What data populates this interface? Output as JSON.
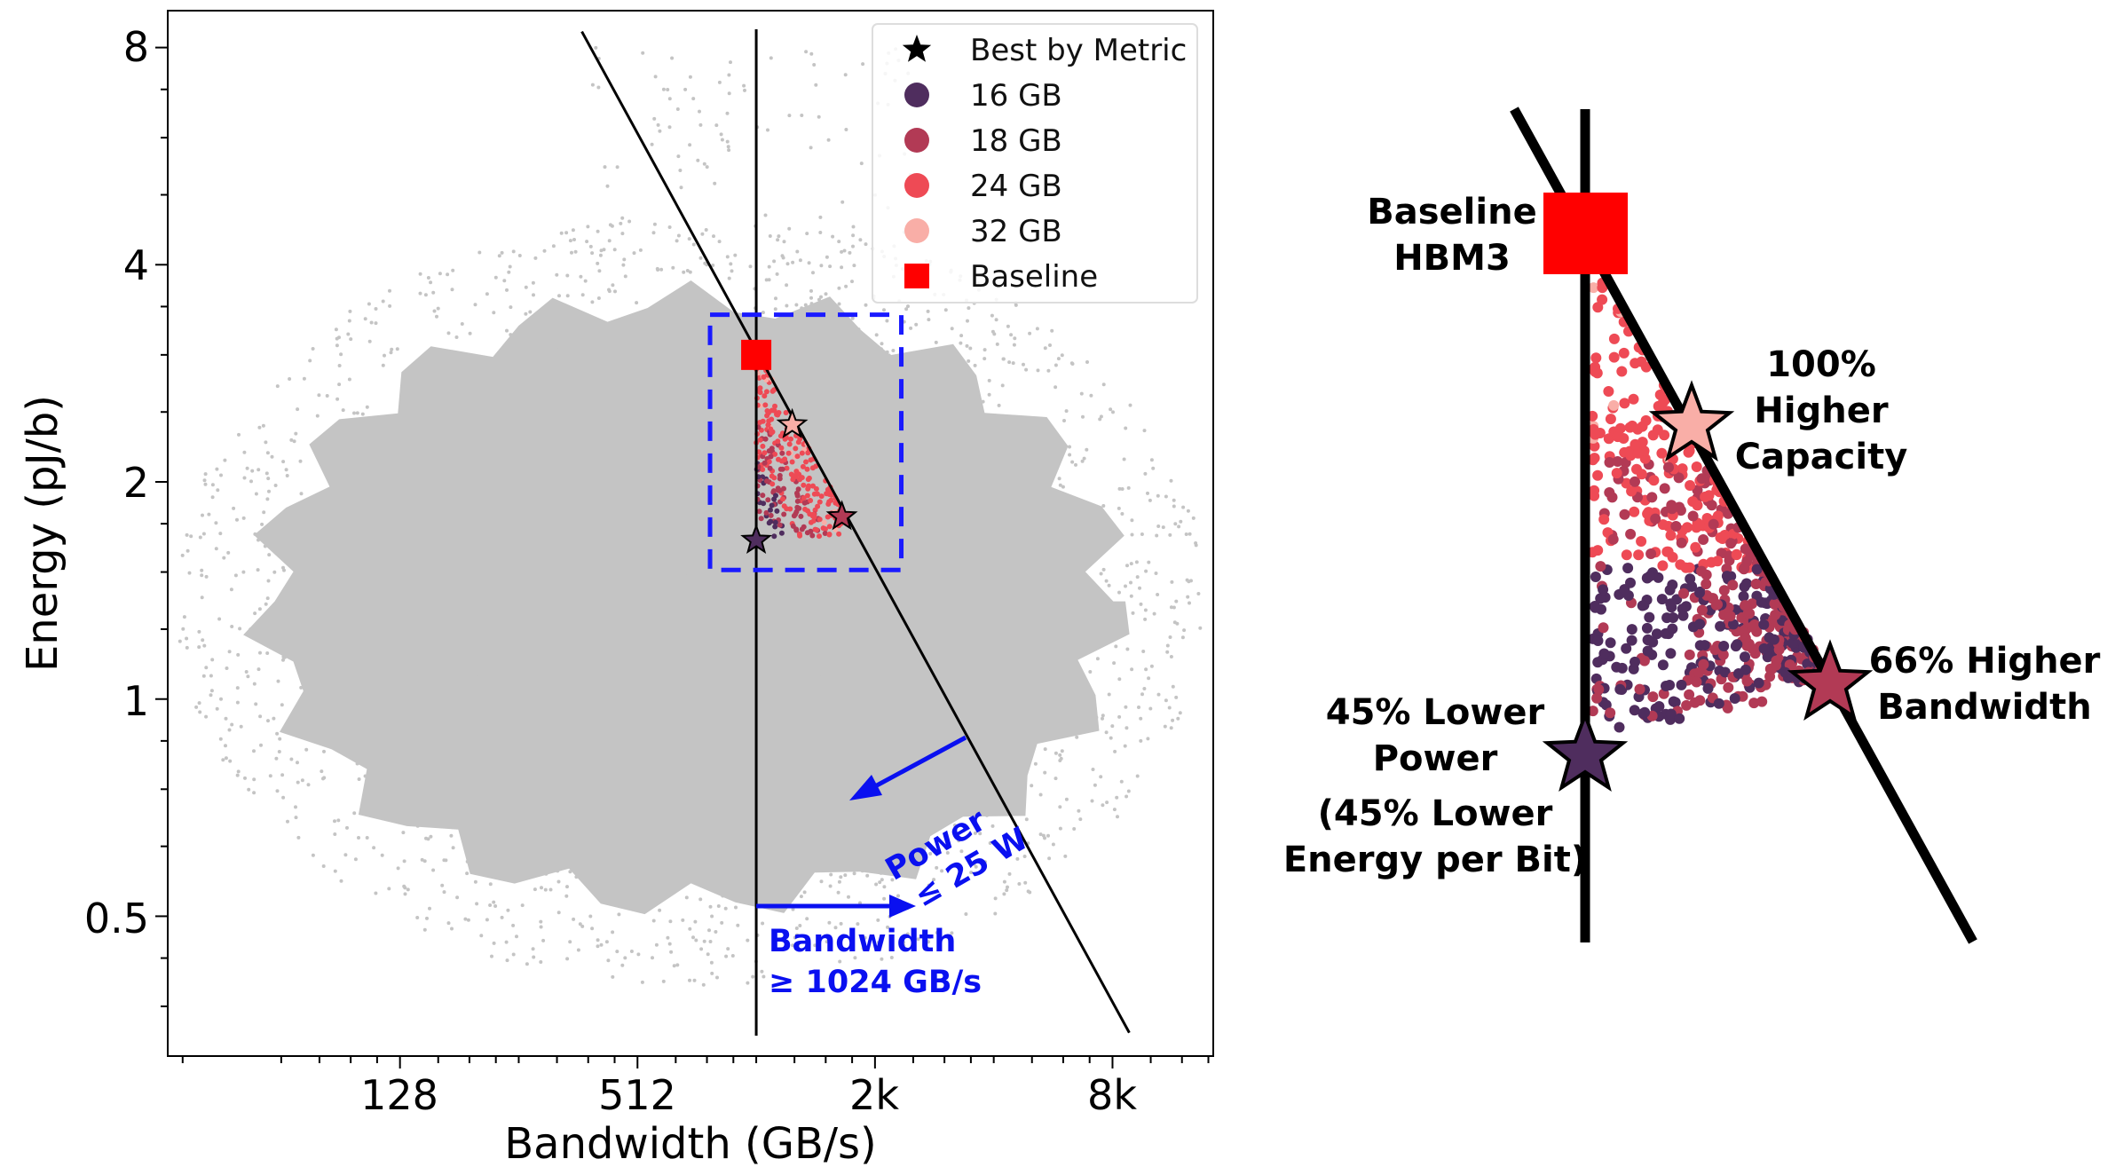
{
  "chart_data": [
    {
      "type": "scatter",
      "title": "",
      "xlabel": "Bandwidth (GB/s)",
      "ylabel": "Energy (pJ/b)",
      "xscale": "log2",
      "yscale": "log2",
      "xlim": [
        33,
        14750
      ],
      "ylim": [
        0.32,
        9
      ],
      "grid": false,
      "xticks": [
        {
          "value": 128,
          "label": "128"
        },
        {
          "value": 512,
          "label": "512"
        },
        {
          "value": 2048,
          "label": "2k"
        },
        {
          "value": 8192,
          "label": "8k"
        }
      ],
      "yticks": [
        {
          "value": 0.5,
          "label": "0.5"
        },
        {
          "value": 1,
          "label": "1"
        },
        {
          "value": 2,
          "label": "2"
        },
        {
          "value": 4,
          "label": "4"
        },
        {
          "value": 8,
          "label": "8"
        }
      ],
      "legend": {
        "placement": "top-right",
        "entries": [
          {
            "label": "Best by Metric",
            "marker": "star",
            "color": "#000000"
          },
          {
            "label": "16 GB",
            "marker": "circle",
            "color": "#4f2d5e"
          },
          {
            "label": "18 GB",
            "marker": "circle",
            "color": "#b23a55"
          },
          {
            "label": "24 GB",
            "marker": "circle",
            "color": "#ee4a55"
          },
          {
            "label": "32 GB",
            "marker": "circle",
            "color": "#f9aea7"
          },
          {
            "label": "Baseline",
            "marker": "square",
            "color": "#ff0000"
          }
        ]
      },
      "background_color": "#c4c4c4",
      "baseline": {
        "x": 1024,
        "y": 3.0,
        "color": "#ff0000"
      },
      "best_points": [
        {
          "metric": "capacity",
          "x": 1263,
          "y": 2.4,
          "color": "#f9aea7"
        },
        {
          "metric": "bandwidth",
          "x": 1688,
          "y": 1.79,
          "color": "#b23a55"
        },
        {
          "metric": "power",
          "x": 1024,
          "y": 1.66,
          "color": "#4f2d5e"
        }
      ],
      "constraints": {
        "bandwidth_min": 1024,
        "power_product": 3115,
        "power_line_x": [
          370,
          9036
        ]
      },
      "highlight_box": {
        "x": [
          782,
          2388
        ],
        "y": [
          1.51,
          3.41
        ],
        "color": "#1a1aff"
      },
      "annotations": {
        "power": [
          "Power",
          "≤ 25 W"
        ],
        "bandwidth": [
          "Bandwidth",
          "≥ 1024 GB/s"
        ]
      }
    },
    {
      "type": "scatter",
      "title": "",
      "annotations": {
        "baseline": [
          "Baseline",
          "HBM3"
        ],
        "capacity": [
          "100%",
          "Higher",
          "Capacity"
        ],
        "bandwidth": [
          "66% Higher",
          "Bandwidth"
        ],
        "power": [
          "45% Lower",
          "Power",
          "(45% Lower",
          "Energy per Bit)"
        ]
      }
    }
  ]
}
